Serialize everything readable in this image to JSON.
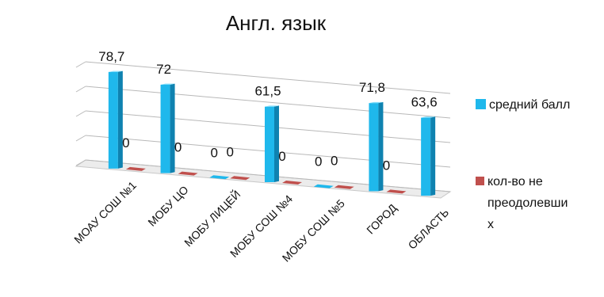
{
  "chart_data": {
    "type": "bar",
    "title": "Англ. язык",
    "categories": [
      "МОАУ СОШ №1",
      "МОБУ ЦО",
      "МОБУ ЛИЦЕЙ",
      "МОБУ СОШ №4",
      "МОБУ СОШ №5",
      "ГОРОД",
      "ОБЛАСТЬ"
    ],
    "series": [
      {
        "name": "средний балл",
        "values": [
          78.7,
          72,
          0,
          61.5,
          0,
          71.8,
          63.6
        ],
        "labels": [
          "78,7",
          "72",
          "0",
          "61,5",
          "0",
          "71,8",
          "63,6"
        ],
        "color": "#1fb8ec",
        "side_color": "#0f82b0",
        "top_color": "#7fdcfa"
      },
      {
        "name": "кол-во не преодолевши х",
        "legend_lines": [
          "кол-во не",
          "преодолевши",
          "х"
        ],
        "values": [
          0,
          0,
          0,
          0,
          0,
          0,
          null
        ],
        "labels": [
          "0",
          "0",
          "0",
          "0",
          "0",
          "0",
          ""
        ],
        "color": "#c0504d",
        "side_color": "#8c3533",
        "top_color": "#d97a77"
      }
    ],
    "ylim": [
      0,
      80
    ],
    "grid": true,
    "legend_position": "right",
    "three_d": true
  }
}
